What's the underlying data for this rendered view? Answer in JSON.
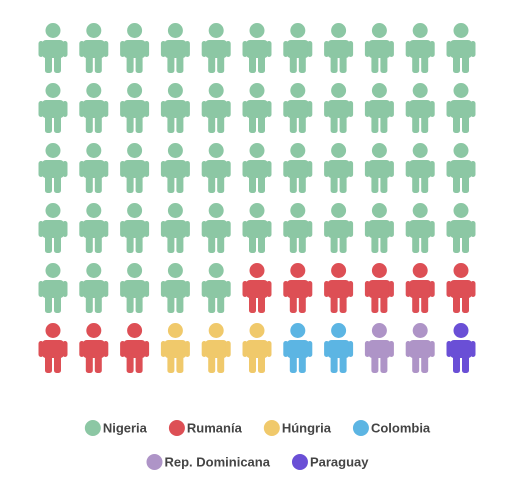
{
  "chart_data": {
    "type": "pictogram",
    "categories": [
      "Nigeria",
      "Rumanía",
      "Húngria",
      "Colombia",
      "Rep. Dominicana",
      "Paraguay"
    ],
    "values": [
      49,
      9,
      3,
      2,
      2,
      1
    ],
    "colors": [
      "#8cc7a4",
      "#dd4f55",
      "#f0c96b",
      "#5cb5e3",
      "#ae94c7",
      "#6a4fd6"
    ],
    "columns": 11
  }
}
